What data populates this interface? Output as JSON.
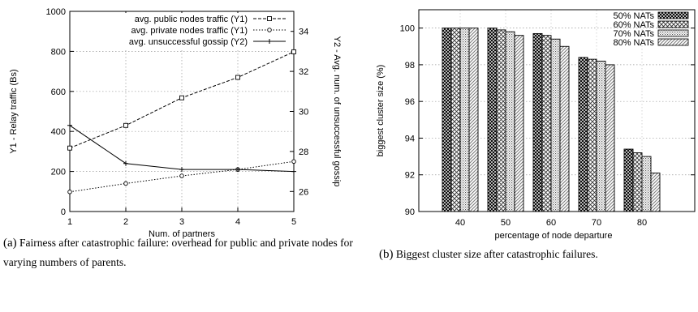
{
  "chart_data": [
    {
      "type": "line",
      "x": [
        1,
        2,
        3,
        4,
        5
      ],
      "xlim": [
        1,
        5
      ],
      "x_ticks": [
        "1",
        "2",
        "3",
        "4",
        "5"
      ],
      "xlabel": "Num. of partners",
      "ylabel": "Y1 - Relay traffic (Bs)",
      "ylim": [
        0,
        1000
      ],
      "y_ticks": [
        "0",
        "200",
        "400",
        "600",
        "800",
        "1000"
      ],
      "y2label": "Y2 - Avg. num. of unsuccessful gossip",
      "y2lim": [
        25,
        35
      ],
      "y2_ticks": [
        "26",
        "28",
        "30",
        "32",
        "34"
      ],
      "grid": true,
      "legend_position": "top-right",
      "series": [
        {
          "name": "avg. public nodes traffic (Y1)",
          "axis": "y1",
          "marker": "square",
          "style": "dashed",
          "values": [
            317,
            430,
            568,
            670,
            798
          ]
        },
        {
          "name": "avg. private nodes traffic (Y1)",
          "axis": "y1",
          "marker": "circle",
          "style": "dotted",
          "values": [
            98,
            140,
            178,
            210,
            250
          ]
        },
        {
          "name": "avg. unsuccessful gossip (Y2)",
          "axis": "y2",
          "marker": "plus",
          "style": "solid",
          "values": [
            29.3,
            27.4,
            27.1,
            27.1,
            27.0
          ]
        }
      ]
    },
    {
      "type": "bar",
      "categories": [
        "40",
        "50",
        "60",
        "70",
        "80"
      ],
      "xlabel": "percentage of node departure",
      "ylabel": "biggest cluster size (%)",
      "ylim": [
        90,
        101
      ],
      "y_ticks": [
        "90",
        "92",
        "94",
        "96",
        "98",
        "100"
      ],
      "grid": true,
      "legend_position": "top-right",
      "series": [
        {
          "name": "50% NATs",
          "pattern": "crosshatch-dense",
          "values": [
            100.0,
            100.0,
            99.7,
            98.4,
            93.4
          ]
        },
        {
          "name": "60% NATs",
          "pattern": "crosshatch",
          "values": [
            100.0,
            99.9,
            99.6,
            98.3,
            93.2
          ]
        },
        {
          "name": "70% NATs",
          "pattern": "dots",
          "values": [
            100.0,
            99.8,
            99.4,
            98.2,
            93.0
          ]
        },
        {
          "name": "80% NATs",
          "pattern": "diagonal",
          "values": [
            100.0,
            99.6,
            99.0,
            98.0,
            92.1
          ]
        }
      ]
    }
  ],
  "captions": {
    "a_tag": "(a)",
    "a_text": "Fairness after catastrophic failure: overhead for public and private nodes for varying numbers of parents.",
    "b_tag": "(b)",
    "b_text": "Biggest cluster size after catastrophic failures."
  }
}
